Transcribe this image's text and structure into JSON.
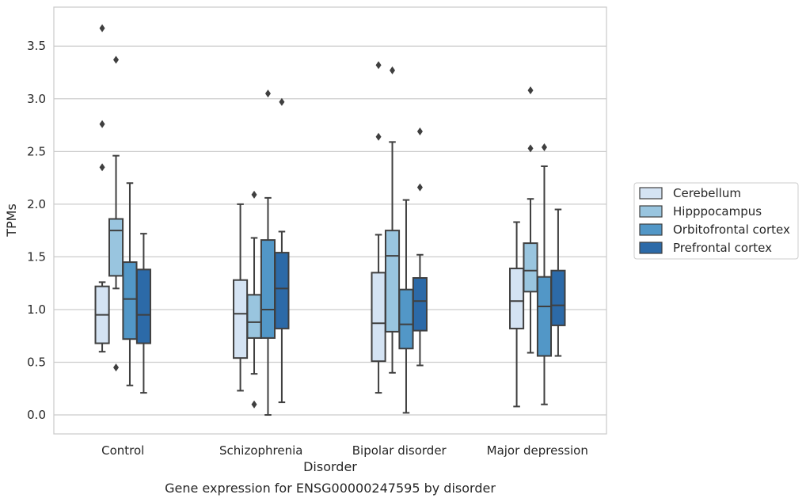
{
  "chart_data": {
    "type": "box",
    "title": "",
    "caption": "Gene expression for ENSG00000247595 by disorder",
    "xlabel": "Disorder",
    "ylabel": "TPMs",
    "ylim": [
      -0.18,
      3.87
    ],
    "yticks": [
      0.0,
      0.5,
      1.0,
      1.5,
      2.0,
      2.5,
      3.0,
      3.5
    ],
    "ytick_labels": [
      "0.0",
      "0.5",
      "1.0",
      "1.5",
      "2.0",
      "2.5",
      "3.0",
      "3.5"
    ],
    "grid": "horizontal",
    "legend_position": "right",
    "categories": [
      "Control",
      "Schizophrenia",
      "Bipolar disorder",
      "Major depression"
    ],
    "series": [
      {
        "name": "Cerebellum",
        "color": "#d4e3f3",
        "boxes": [
          {
            "whislo": 0.6,
            "q1": 0.68,
            "med": 0.95,
            "q3": 1.22,
            "whishi": 1.26,
            "fliers": [
              3.67,
              2.76,
              2.35
            ]
          },
          {
            "whislo": 0.23,
            "q1": 0.54,
            "med": 0.96,
            "q3": 1.28,
            "whishi": 2.0,
            "fliers": []
          },
          {
            "whislo": 0.21,
            "q1": 0.51,
            "med": 0.87,
            "q3": 1.35,
            "whishi": 1.71,
            "fliers": [
              3.32,
              2.64
            ]
          },
          {
            "whislo": 0.08,
            "q1": 0.82,
            "med": 1.08,
            "q3": 1.39,
            "whishi": 1.83,
            "fliers": []
          }
        ]
      },
      {
        "name": "Hipppocampus",
        "color": "#99c5df",
        "boxes": [
          {
            "whislo": 1.2,
            "q1": 1.32,
            "med": 1.75,
            "q3": 1.86,
            "whishi": 2.46,
            "fliers": [
              3.37,
              0.45
            ]
          },
          {
            "whislo": 0.39,
            "q1": 0.73,
            "med": 0.88,
            "q3": 1.14,
            "whishi": 1.68,
            "fliers": [
              2.09,
              0.1
            ]
          },
          {
            "whislo": 0.4,
            "q1": 0.79,
            "med": 1.51,
            "q3": 1.75,
            "whishi": 2.59,
            "fliers": [
              3.27
            ]
          },
          {
            "whislo": 0.59,
            "q1": 1.17,
            "med": 1.37,
            "q3": 1.63,
            "whishi": 2.05,
            "fliers": [
              3.08,
              2.53
            ]
          }
        ]
      },
      {
        "name": "Orbitofrontal cortex",
        "color": "#5297c7",
        "boxes": [
          {
            "whislo": 0.28,
            "q1": 0.72,
            "med": 1.1,
            "q3": 1.45,
            "whishi": 2.2,
            "fliers": []
          },
          {
            "whislo": 0.0,
            "q1": 0.73,
            "med": 1.0,
            "q3": 1.66,
            "whishi": 2.06,
            "fliers": [
              3.05
            ]
          },
          {
            "whislo": 0.02,
            "q1": 0.63,
            "med": 0.86,
            "q3": 1.19,
            "whishi": 2.04,
            "fliers": []
          },
          {
            "whislo": 0.1,
            "q1": 0.56,
            "med": 1.03,
            "q3": 1.31,
            "whishi": 2.36,
            "fliers": [
              2.54
            ]
          }
        ]
      },
      {
        "name": "Prefrontal cortex",
        "color": "#2c6aa8",
        "boxes": [
          {
            "whislo": 0.21,
            "q1": 0.68,
            "med": 0.95,
            "q3": 1.38,
            "whishi": 1.72,
            "fliers": []
          },
          {
            "whislo": 0.12,
            "q1": 0.82,
            "med": 1.2,
            "q3": 1.54,
            "whishi": 1.74,
            "fliers": [
              2.97
            ]
          },
          {
            "whislo": 0.47,
            "q1": 0.8,
            "med": 1.08,
            "q3": 1.3,
            "whishi": 1.52,
            "fliers": [
              2.69,
              2.16
            ]
          },
          {
            "whislo": 0.56,
            "q1": 0.85,
            "med": 1.04,
            "q3": 1.37,
            "whishi": 1.95,
            "fliers": []
          }
        ]
      }
    ]
  }
}
